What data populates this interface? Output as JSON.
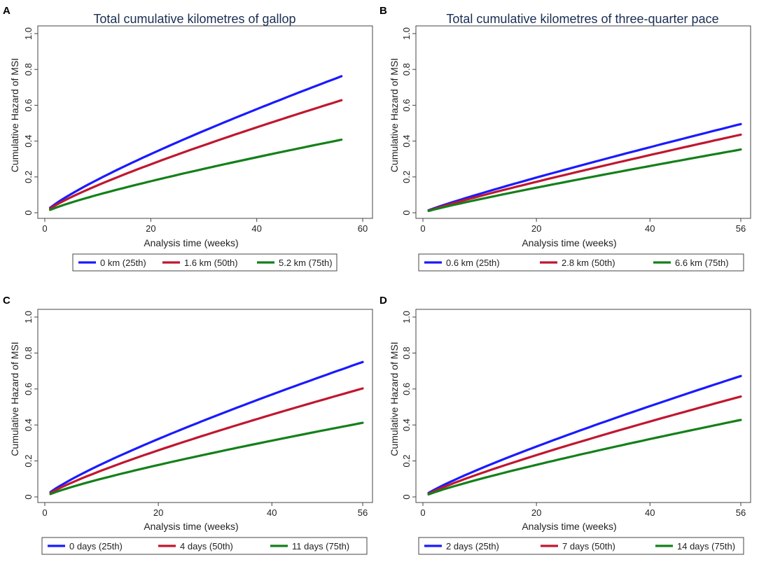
{
  "chart_data": [
    {
      "panel_label": "A",
      "type": "line",
      "title": "Total cumulative kilometres of gallop",
      "xlabel": "Analysis time (weeks)",
      "ylabel": "Cumulative Hazard of MSI",
      "xlim": [
        0,
        60
      ],
      "ylim": [
        0,
        1.0
      ],
      "x_ticks": [
        0,
        20,
        40,
        60
      ],
      "x_tick_labels": [
        "0",
        "20",
        "40",
        "60"
      ],
      "y_ticks": [
        0,
        0.2,
        0.4,
        0.6,
        0.8,
        1.0
      ],
      "y_tick_labels": [
        "0",
        "0.2",
        "0.4",
        "0.6",
        "0.8",
        "1.0"
      ],
      "grid": false,
      "legend_position": "bottom",
      "series": [
        {
          "name": "0 km (25th)",
          "color": "#1a1aff",
          "x": [
            1,
            56
          ],
          "y": [
            0.028,
            0.762
          ],
          "shape_exponent": 0.82
        },
        {
          "name": "1.6 km (50th)",
          "color": "#c0172f",
          "x": [
            1,
            56
          ],
          "y": [
            0.024,
            0.628
          ],
          "shape_exponent": 0.82
        },
        {
          "name": "5.2 km (75th)",
          "color": "#14801a",
          "x": [
            1,
            56
          ],
          "y": [
            0.016,
            0.408
          ],
          "shape_exponent": 0.82
        }
      ]
    },
    {
      "panel_label": "B",
      "type": "line",
      "title": "Total cumulative kilometres of three-quarter pace",
      "xlabel": "Analysis time (weeks)",
      "ylabel": "Cumulative Hazard of MSI",
      "xlim": [
        0,
        56
      ],
      "ylim": [
        0,
        1.0
      ],
      "x_ticks": [
        0,
        20,
        40,
        56
      ],
      "x_tick_labels": [
        "0",
        "20",
        "40",
        "56"
      ],
      "y_ticks": [
        0,
        0.2,
        0.4,
        0.6,
        0.8,
        1.0
      ],
      "y_tick_labels": [
        "0",
        "0.2",
        "0.4",
        "0.6",
        "0.8",
        "1.0"
      ],
      "grid": false,
      "legend_position": "bottom",
      "series": [
        {
          "name": "0.6 km (25th)",
          "color": "#1a1aff",
          "x": [
            1,
            56
          ],
          "y": [
            0.014,
            0.495
          ],
          "shape_exponent": 0.9
        },
        {
          "name": "2.8 km (50th)",
          "color": "#c0172f",
          "x": [
            1,
            56
          ],
          "y": [
            0.012,
            0.436
          ],
          "shape_exponent": 0.9
        },
        {
          "name": "6.6 km (75th)",
          "color": "#14801a",
          "x": [
            1,
            56
          ],
          "y": [
            0.01,
            0.353
          ],
          "shape_exponent": 0.9
        }
      ]
    },
    {
      "panel_label": "C",
      "type": "line",
      "title": "Total cumulative days of gallop",
      "xlabel": "Analysis time (weeks)",
      "ylabel": "Cumulative Hazard of MSI",
      "xlim": [
        0,
        56
      ],
      "ylim": [
        0,
        1.0
      ],
      "x_ticks": [
        0,
        20,
        40,
        56
      ],
      "x_tick_labels": [
        "0",
        "20",
        "40",
        "56"
      ],
      "y_ticks": [
        0,
        0.2,
        0.4,
        0.6,
        0.8,
        1.0
      ],
      "y_tick_labels": [
        "0",
        "0.2",
        "0.4",
        "0.6",
        "0.8",
        "1.0"
      ],
      "grid": false,
      "legend_position": "bottom",
      "series": [
        {
          "name": "0 days (25th)",
          "color": "#1a1aff",
          "x": [
            1,
            56
          ],
          "y": [
            0.027,
            0.75
          ],
          "shape_exponent": 0.82
        },
        {
          "name": "4 days (50th)",
          "color": "#c0172f",
          "x": [
            1,
            56
          ],
          "y": [
            0.022,
            0.603
          ],
          "shape_exponent": 0.82
        },
        {
          "name": "11 days (75th)",
          "color": "#14801a",
          "x": [
            1,
            56
          ],
          "y": [
            0.016,
            0.412
          ],
          "shape_exponent": 0.82
        }
      ]
    },
    {
      "panel_label": "D",
      "type": "line",
      "title": "Total cumulative days of three-quarter pace",
      "xlabel": "Analysis time (weeks)",
      "ylabel": "Cumulative Hazard of MSI",
      "xlim": [
        0,
        56
      ],
      "ylim": [
        0,
        1.0
      ],
      "x_ticks": [
        0,
        20,
        40,
        56
      ],
      "x_tick_labels": [
        "0",
        "20",
        "40",
        "56"
      ],
      "y_ticks": [
        0,
        0.2,
        0.4,
        0.6,
        0.8,
        1.0
      ],
      "y_tick_labels": [
        "0",
        "0.2",
        "0.4",
        "0.6",
        "0.8",
        "1.0"
      ],
      "grid": false,
      "legend_position": "bottom",
      "series": [
        {
          "name": "2 days (25th)",
          "color": "#1a1aff",
          "x": [
            1,
            56
          ],
          "y": [
            0.022,
            0.672
          ],
          "shape_exponent": 0.85
        },
        {
          "name": "7 days (50th)",
          "color": "#c0172f",
          "x": [
            1,
            56
          ],
          "y": [
            0.018,
            0.558
          ],
          "shape_exponent": 0.85
        },
        {
          "name": "14 days (75th)",
          "color": "#14801a",
          "x": [
            1,
            56
          ],
          "y": [
            0.014,
            0.428
          ],
          "shape_exponent": 0.85
        }
      ]
    }
  ]
}
